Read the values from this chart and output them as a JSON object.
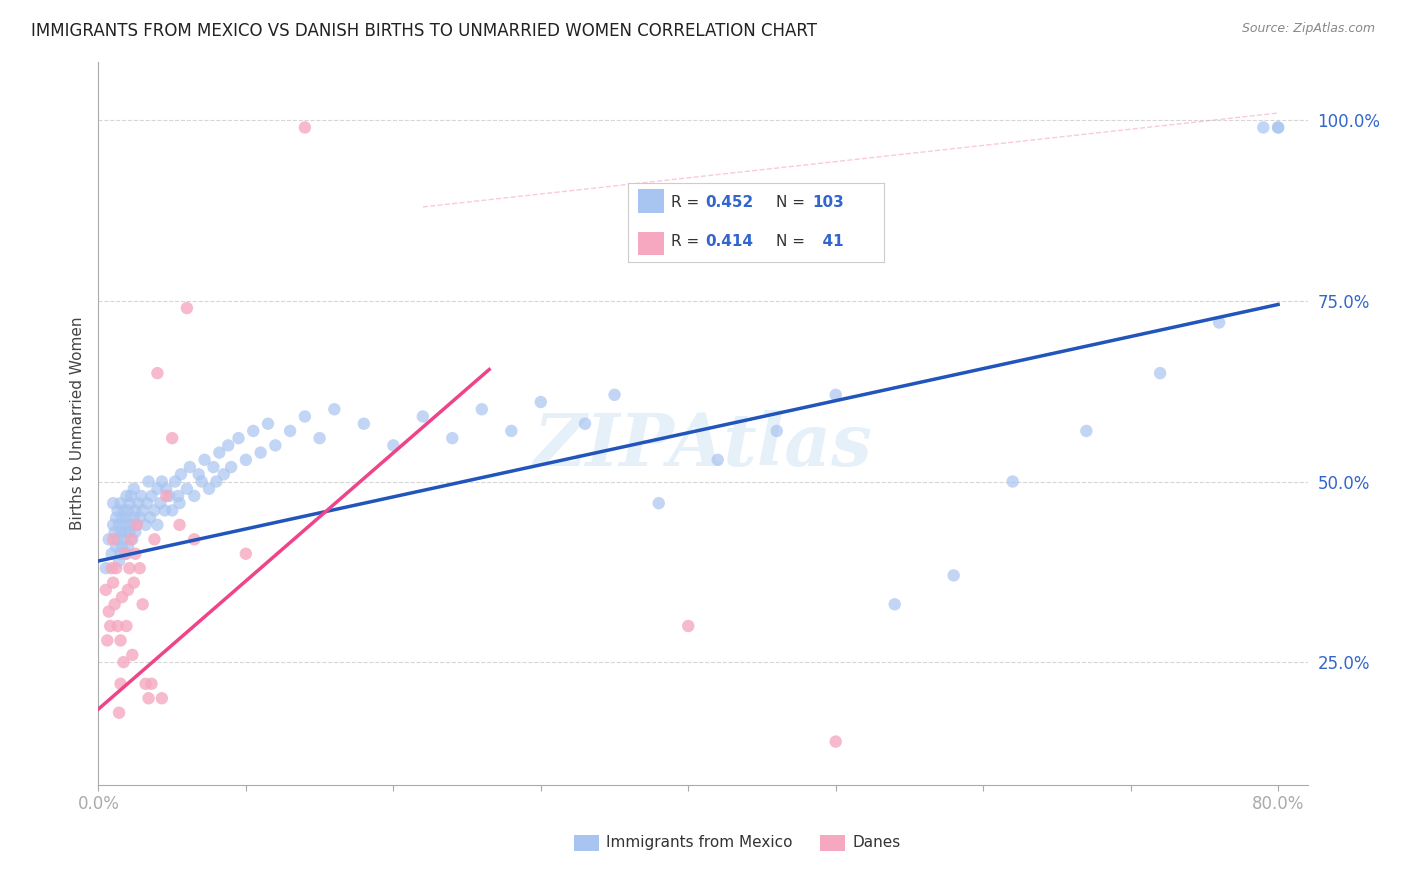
{
  "title": "IMMIGRANTS FROM MEXICO VS DANISH BIRTHS TO UNMARRIED WOMEN CORRELATION CHART",
  "source": "Source: ZipAtlas.com",
  "ylabel": "Births to Unmarried Women",
  "ytick_labels": [
    "25.0%",
    "50.0%",
    "75.0%",
    "100.0%"
  ],
  "ytick_vals": [
    0.25,
    0.5,
    0.75,
    1.0
  ],
  "blue_legend_r": "0.452",
  "blue_legend_n": "103",
  "pink_legend_r": "0.414",
  "pink_legend_n": "41",
  "blue_scatter_color": "#a8c4f0",
  "pink_scatter_color": "#f5a8c0",
  "blue_line_color": "#2255bb",
  "pink_line_color": "#ee4488",
  "pink_dash_color": "#f5a8c0",
  "grid_color": "#cccccc",
  "background_color": "#ffffff",
  "xlim": [
    0.0,
    0.82
  ],
  "ylim": [
    0.08,
    1.08
  ],
  "blue_line_x0": 0.0,
  "blue_line_y0": 0.39,
  "blue_line_x1": 0.8,
  "blue_line_y1": 0.745,
  "pink_line_x0": 0.0,
  "pink_line_y0": 0.185,
  "pink_line_x1": 0.265,
  "pink_line_y1": 0.655,
  "dash_line_x0": 0.22,
  "dash_line_y0": 0.88,
  "dash_line_x1": 0.8,
  "dash_line_y1": 1.01,
  "watermark": "ZIPAtlas",
  "blue_scatter_x": [
    0.005,
    0.007,
    0.009,
    0.01,
    0.01,
    0.011,
    0.012,
    0.012,
    0.013,
    0.013,
    0.014,
    0.014,
    0.015,
    0.015,
    0.015,
    0.016,
    0.016,
    0.017,
    0.017,
    0.018,
    0.018,
    0.019,
    0.019,
    0.019,
    0.02,
    0.02,
    0.021,
    0.021,
    0.022,
    0.022,
    0.023,
    0.024,
    0.024,
    0.025,
    0.025,
    0.026,
    0.027,
    0.028,
    0.029,
    0.03,
    0.032,
    0.033,
    0.034,
    0.035,
    0.036,
    0.038,
    0.04,
    0.04,
    0.042,
    0.043,
    0.045,
    0.046,
    0.048,
    0.05,
    0.052,
    0.054,
    0.055,
    0.056,
    0.06,
    0.062,
    0.065,
    0.068,
    0.07,
    0.072,
    0.075,
    0.078,
    0.08,
    0.082,
    0.085,
    0.088,
    0.09,
    0.095,
    0.1,
    0.105,
    0.11,
    0.115,
    0.12,
    0.13,
    0.14,
    0.15,
    0.16,
    0.18,
    0.2,
    0.22,
    0.24,
    0.26,
    0.28,
    0.3,
    0.33,
    0.35,
    0.38,
    0.42,
    0.46,
    0.5,
    0.54,
    0.58,
    0.62,
    0.67,
    0.72,
    0.76,
    0.79,
    0.8,
    0.8
  ],
  "blue_scatter_y": [
    0.38,
    0.42,
    0.4,
    0.44,
    0.47,
    0.43,
    0.41,
    0.45,
    0.42,
    0.46,
    0.39,
    0.44,
    0.4,
    0.43,
    0.47,
    0.41,
    0.45,
    0.42,
    0.46,
    0.43,
    0.44,
    0.4,
    0.45,
    0.48,
    0.41,
    0.46,
    0.43,
    0.47,
    0.44,
    0.48,
    0.42,
    0.45,
    0.49,
    0.43,
    0.46,
    0.44,
    0.47,
    0.45,
    0.48,
    0.46,
    0.44,
    0.47,
    0.5,
    0.45,
    0.48,
    0.46,
    0.44,
    0.49,
    0.47,
    0.5,
    0.46,
    0.49,
    0.48,
    0.46,
    0.5,
    0.48,
    0.47,
    0.51,
    0.49,
    0.52,
    0.48,
    0.51,
    0.5,
    0.53,
    0.49,
    0.52,
    0.5,
    0.54,
    0.51,
    0.55,
    0.52,
    0.56,
    0.53,
    0.57,
    0.54,
    0.58,
    0.55,
    0.57,
    0.59,
    0.56,
    0.6,
    0.58,
    0.55,
    0.59,
    0.56,
    0.6,
    0.57,
    0.61,
    0.58,
    0.62,
    0.47,
    0.53,
    0.57,
    0.62,
    0.33,
    0.37,
    0.5,
    0.57,
    0.65,
    0.72,
    0.99,
    0.99,
    0.99
  ],
  "pink_scatter_x": [
    0.005,
    0.006,
    0.007,
    0.008,
    0.009,
    0.01,
    0.01,
    0.011,
    0.012,
    0.013,
    0.014,
    0.015,
    0.015,
    0.016,
    0.017,
    0.018,
    0.019,
    0.02,
    0.021,
    0.022,
    0.023,
    0.024,
    0.025,
    0.026,
    0.028,
    0.03,
    0.032,
    0.034,
    0.036,
    0.038,
    0.04,
    0.043,
    0.046,
    0.05,
    0.055,
    0.06,
    0.065,
    0.1,
    0.14,
    0.4,
    0.5
  ],
  "pink_scatter_y": [
    0.35,
    0.28,
    0.32,
    0.3,
    0.38,
    0.36,
    0.42,
    0.33,
    0.38,
    0.3,
    0.18,
    0.22,
    0.28,
    0.34,
    0.25,
    0.4,
    0.3,
    0.35,
    0.38,
    0.42,
    0.26,
    0.36,
    0.4,
    0.44,
    0.38,
    0.33,
    0.22,
    0.2,
    0.22,
    0.42,
    0.65,
    0.2,
    0.48,
    0.56,
    0.44,
    0.74,
    0.42,
    0.4,
    0.99,
    0.3,
    0.14
  ]
}
